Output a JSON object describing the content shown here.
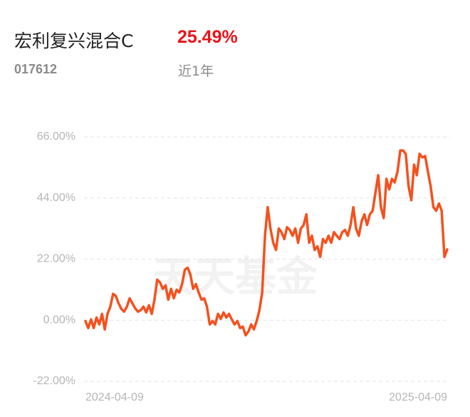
{
  "fund": {
    "name": "宏利复兴混合C",
    "return": "25.49%",
    "code": "017612",
    "period": "近1年"
  },
  "watermark": "天天基金",
  "chart_data": {
    "type": "line",
    "categories": [
      "2024-04-09",
      null,
      null,
      null,
      null,
      null,
      null,
      null,
      null,
      null,
      null,
      null,
      null,
      null,
      null,
      null,
      null,
      null,
      null,
      null,
      null,
      null,
      null,
      null,
      null,
      null,
      null,
      null,
      null,
      null,
      null,
      null,
      null,
      null,
      null,
      null,
      null,
      null,
      null,
      null,
      null,
      null,
      null,
      null,
      null,
      null,
      null,
      null,
      null,
      null,
      null,
      null,
      null,
      null,
      null,
      null,
      null,
      null,
      null,
      null,
      null,
      null,
      null,
      null,
      null,
      null,
      null,
      null,
      null,
      null,
      null,
      null,
      null,
      null,
      null,
      null,
      null,
      null,
      null,
      null,
      null,
      null,
      null,
      null,
      null,
      null,
      null,
      null,
      null,
      null,
      null,
      null,
      null,
      null,
      null,
      null,
      null,
      null,
      null,
      null,
      null,
      null,
      null,
      null,
      null,
      null,
      null,
      null,
      null,
      null,
      null,
      null,
      null,
      null,
      null,
      null,
      null,
      null,
      null,
      null,
      null,
      null,
      null,
      null,
      null,
      null,
      null,
      null,
      null,
      null,
      null,
      "2025-04-09"
    ],
    "values": [
      -0.3,
      -2.8,
      0.3,
      -2.8,
      1.0,
      -1.5,
      2.3,
      -3.3,
      2.3,
      4.9,
      9.5,
      8.7,
      6.1,
      4.1,
      3.1,
      4.9,
      7.9,
      6.1,
      4.3,
      3.1,
      3.6,
      4.9,
      2.8,
      5.4,
      2.3,
      7.4,
      14.6,
      13.6,
      11.3,
      12.5,
      7.4,
      11.3,
      7.9,
      11.0,
      10.0,
      13.0,
      18.2,
      18.9,
      16.4,
      11.3,
      13.0,
      10.0,
      7.4,
      7.9,
      4.9,
      -1.5,
      -0.3,
      -1.5,
      2.3,
      0.5,
      2.8,
      1.0,
      2.3,
      0.3,
      -1.5,
      -0.3,
      -2.8,
      -2.3,
      -5.4,
      -4.1,
      -1.5,
      -3.3,
      -0.3,
      3.6,
      10.0,
      30.4,
      40.7,
      33.0,
      27.9,
      25.3,
      33.0,
      31.7,
      29.2,
      33.5,
      32.5,
      30.4,
      33.0,
      27.9,
      33.0,
      34.3,
      38.1,
      27.9,
      30.4,
      25.3,
      26.6,
      22.8,
      29.2,
      27.9,
      30.4,
      27.9,
      31.7,
      30.4,
      29.2,
      31.7,
      32.5,
      30.4,
      34.3,
      40.7,
      33.0,
      30.4,
      35.6,
      38.1,
      34.3,
      38.1,
      39.4,
      45.8,
      52.2,
      40.7,
      36.8,
      50.9,
      47.1,
      50.9,
      49.6,
      53.5,
      61.1,
      61.1,
      59.9,
      48.3,
      43.2,
      56.0,
      52.2,
      59.9,
      58.6,
      59.1,
      53.5,
      48.3,
      40.7,
      39.4,
      42.0,
      39.4,
      22.8,
      25.49
    ],
    "color": "#f4511e",
    "ylim": [
      -22,
      66
    ],
    "yticks": [
      {
        "value": -22,
        "label": "-22.00%"
      },
      {
        "value": 0,
        "label": "0.00%"
      },
      {
        "value": 22,
        "label": "22.00%"
      },
      {
        "value": 44,
        "label": "44.00%"
      },
      {
        "value": 66,
        "label": "66.00%"
      }
    ],
    "grid": true
  }
}
